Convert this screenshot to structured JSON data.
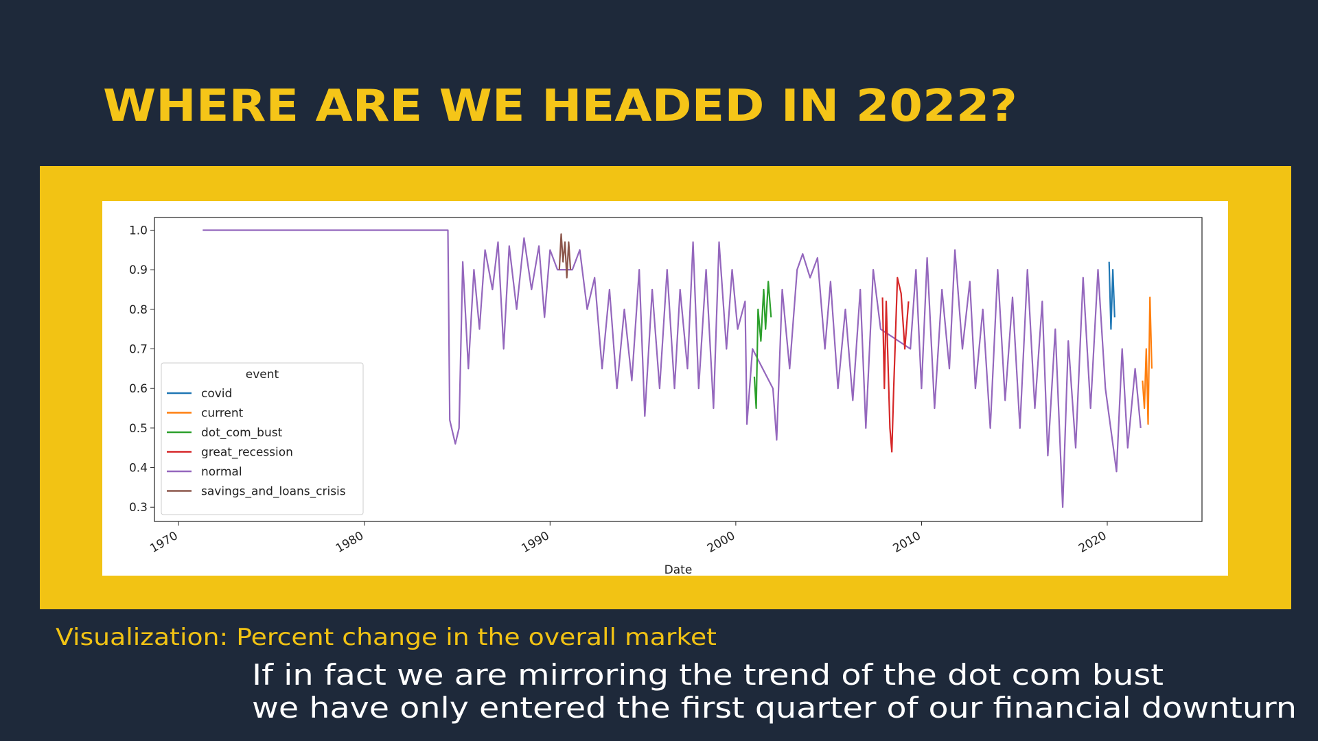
{
  "title": "WHERE ARE WE HEADED IN 2022?",
  "caption": "Visualization: Percent change in the overall market",
  "notes": [
    "If in fact we are mirroring the trend of the dot com bust",
    "we have only entered the first quarter of our financial downturn"
  ],
  "chart_data": {
    "type": "line",
    "xlabel": "Date",
    "legend_title": "event",
    "legend": "lower left",
    "xlim": [
      1968.7,
      2025.1
    ],
    "xticks": [
      1970,
      1980,
      1990,
      2000,
      2010,
      2020
    ],
    "ylim": [
      0.264,
      1.032
    ],
    "yticks": [
      0.3,
      0.4,
      0.5,
      0.6,
      0.7,
      0.8,
      0.9,
      {
        "value": 1,
        "label": "1.0"
      }
    ],
    "series": [
      {
        "name": "covid",
        "color": "#1f77b4",
        "x": [
          2020.1,
          2020.2,
          2020.3,
          2020.4
        ],
        "values": [
          0.92,
          0.75,
          0.9,
          0.78
        ]
      },
      {
        "name": "current",
        "color": "#ff7f0e",
        "x": [
          2021.9,
          2022.0,
          2022.1,
          2022.2,
          2022.3,
          2022.4
        ],
        "values": [
          0.62,
          0.55,
          0.7,
          0.51,
          0.83,
          0.65
        ]
      },
      {
        "name": "dot_com_bust",
        "color": "#2ca02c",
        "x": [
          2001.0,
          2001.1,
          2001.2,
          2001.35,
          2001.5,
          2001.6,
          2001.75,
          2001.9
        ],
        "values": [
          0.63,
          0.55,
          0.8,
          0.72,
          0.85,
          0.75,
          0.87,
          0.78
        ]
      },
      {
        "name": "great_recession",
        "color": "#d62728",
        "x": [
          2007.9,
          2008.0,
          2008.1,
          2008.3,
          2008.4,
          2008.5,
          2008.7,
          2008.9,
          2009.1,
          2009.3
        ],
        "values": [
          0.83,
          0.6,
          0.82,
          0.5,
          0.44,
          0.6,
          0.88,
          0.84,
          0.7,
          0.82
        ]
      },
      {
        "name": "normal",
        "color": "#9467bd",
        "x": [
          1971.3,
          1984.5,
          1984.6,
          1984.9,
          1985.1,
          1985.3,
          1985.6,
          1985.9,
          1986.2,
          1986.5,
          1986.9,
          1987.2,
          1987.5,
          1987.8,
          1988.2,
          1988.6,
          1989.0,
          1989.4,
          1989.7,
          1990.0,
          1990.4,
          1991.2,
          1991.6,
          1992.0,
          1992.4,
          1992.8,
          1993.2,
          1993.6,
          1994.0,
          1994.4,
          1994.8,
          1995.1,
          1995.5,
          1995.9,
          1996.3,
          1996.7,
          1997.0,
          1997.4,
          1997.7,
          1998.0,
          1998.4,
          1998.8,
          1999.1,
          1999.5,
          1999.8,
          2000.1,
          2000.5,
          2000.6,
          2000.9,
          2002.0,
          2002.2,
          2002.5,
          2002.9,
          2003.3,
          2003.6,
          2004.0,
          2004.4,
          2004.8,
          2005.1,
          2005.5,
          2005.9,
          2006.3,
          2006.7,
          2007.0,
          2007.4,
          2007.8,
          2009.4,
          2009.7,
          2010.0,
          2010.3,
          2010.7,
          2011.1,
          2011.5,
          2011.8,
          2012.2,
          2012.6,
          2012.9,
          2013.3,
          2013.7,
          2014.1,
          2014.5,
          2014.9,
          2015.3,
          2015.7,
          2016.1,
          2016.5,
          2016.8,
          2017.2,
          2017.6,
          2017.9,
          2018.3,
          2018.7,
          2019.1,
          2019.5,
          2019.9,
          2020.5,
          2020.8,
          2021.1,
          2021.5,
          2021.8
        ],
        "values": [
          1.0,
          1.0,
          0.52,
          0.46,
          0.5,
          0.92,
          0.65,
          0.9,
          0.75,
          0.95,
          0.85,
          0.97,
          0.7,
          0.96,
          0.8,
          0.98,
          0.85,
          0.96,
          0.78,
          0.95,
          0.9,
          0.9,
          0.95,
          0.8,
          0.88,
          0.65,
          0.85,
          0.6,
          0.8,
          0.62,
          0.9,
          0.53,
          0.85,
          0.6,
          0.9,
          0.6,
          0.85,
          0.65,
          0.97,
          0.6,
          0.9,
          0.55,
          0.97,
          0.7,
          0.9,
          0.75,
          0.82,
          0.51,
          0.7,
          0.6,
          0.47,
          0.85,
          0.65,
          0.9,
          0.94,
          0.88,
          0.93,
          0.7,
          0.87,
          0.6,
          0.8,
          0.57,
          0.85,
          0.5,
          0.9,
          0.75,
          0.7,
          0.9,
          0.6,
          0.93,
          0.55,
          0.85,
          0.65,
          0.95,
          0.7,
          0.87,
          0.6,
          0.8,
          0.5,
          0.9,
          0.57,
          0.83,
          0.5,
          0.9,
          0.55,
          0.82,
          0.43,
          0.75,
          0.3,
          0.72,
          0.45,
          0.88,
          0.55,
          0.9,
          0.6,
          0.39,
          0.7,
          0.45,
          0.65,
          0.5
        ]
      },
      {
        "name": "savings_and_loans_crisis",
        "color": "#8c564b",
        "x": [
          1990.5,
          1990.6,
          1990.7,
          1990.8,
          1990.9,
          1991.0,
          1991.1
        ],
        "values": [
          0.9,
          0.99,
          0.92,
          0.97,
          0.88,
          0.97,
          0.9
        ]
      }
    ]
  }
}
